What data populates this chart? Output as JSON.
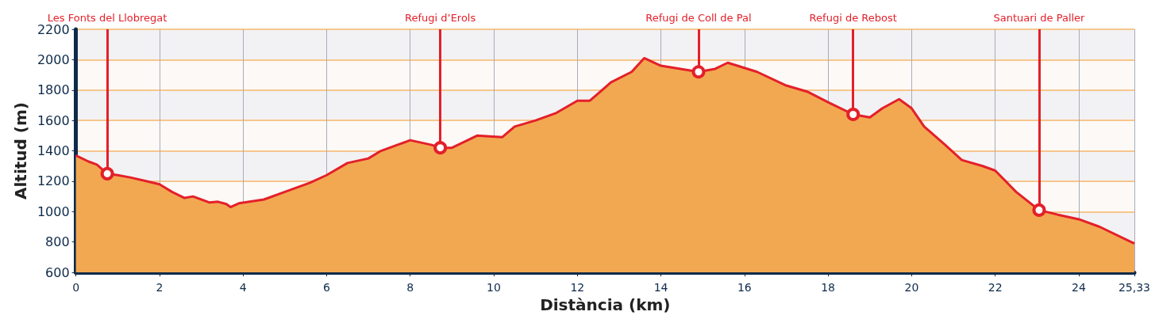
{
  "chart_data": {
    "type": "area",
    "xlabel": "Distància (km)",
    "ylabel": "Altitud (m)",
    "x": [
      0,
      0.3,
      0.5,
      0.75,
      1.0,
      1.3,
      1.7,
      2.0,
      2.3,
      2.6,
      2.8,
      3.2,
      3.4,
      3.6,
      3.7,
      3.9,
      4.5,
      5.0,
      5.6,
      6.0,
      6.5,
      7.0,
      7.3,
      7.7,
      8.0,
      8.5,
      8.72,
      9.0,
      9.6,
      10.2,
      10.5,
      11.0,
      11.5,
      12.0,
      12.3,
      12.8,
      13.3,
      13.6,
      14.0,
      14.9,
      15.3,
      15.6,
      16.3,
      17.0,
      17.5,
      18.0,
      18.6,
      19.0,
      19.3,
      19.7,
      20.0,
      20.3,
      20.8,
      21.2,
      21.7,
      22.0,
      22.5,
      23.05,
      23.5,
      24.0,
      24.5,
      25.33
    ],
    "series": [
      {
        "color": "#e3202a",
        "values": [
          1370,
          1330,
          1310,
          1250,
          1240,
          1225,
          1200,
          1180,
          1130,
          1090,
          1100,
          1060,
          1065,
          1050,
          1030,
          1055,
          1080,
          1130,
          1190,
          1240,
          1320,
          1350,
          1400,
          1440,
          1470,
          1440,
          1420,
          1420,
          1500,
          1490,
          1560,
          1600,
          1650,
          1730,
          1730,
          1850,
          1920,
          2010,
          1960,
          1920,
          1940,
          1980,
          1920,
          1830,
          1790,
          1720,
          1640,
          1620,
          1680,
          1740,
          1680,
          1560,
          1440,
          1340,
          1300,
          1270,
          1130,
          1010,
          980,
          950,
          900,
          790
        ]
      }
    ],
    "annotations": [
      {
        "text": "Les Fonts del Llobregat",
        "x": 0.75,
        "y": 1250
      },
      {
        "text": "Refugi d’Erols",
        "x": 8.72,
        "y": 1420
      },
      {
        "text": "Refugi de Coll de Pal",
        "x": 14.9,
        "y": 1920
      },
      {
        "text": "Refugi de Rebost",
        "x": 18.6,
        "y": 1640
      },
      {
        "text": "Santuari de Paller",
        "x": 23.05,
        "y": 1010
      }
    ],
    "xlim": [
      0,
      25.33
    ],
    "xticks": [
      0,
      2,
      4,
      6,
      8,
      10,
      12,
      14,
      16,
      18,
      20,
      22,
      24,
      {
        "value": 25.33,
        "label": "25,33"
      }
    ],
    "ylim": [
      600,
      2200
    ],
    "yticks": [
      600,
      800,
      1000,
      1200,
      1400,
      1600,
      1800,
      2000,
      2200
    ],
    "grid": true
  }
}
